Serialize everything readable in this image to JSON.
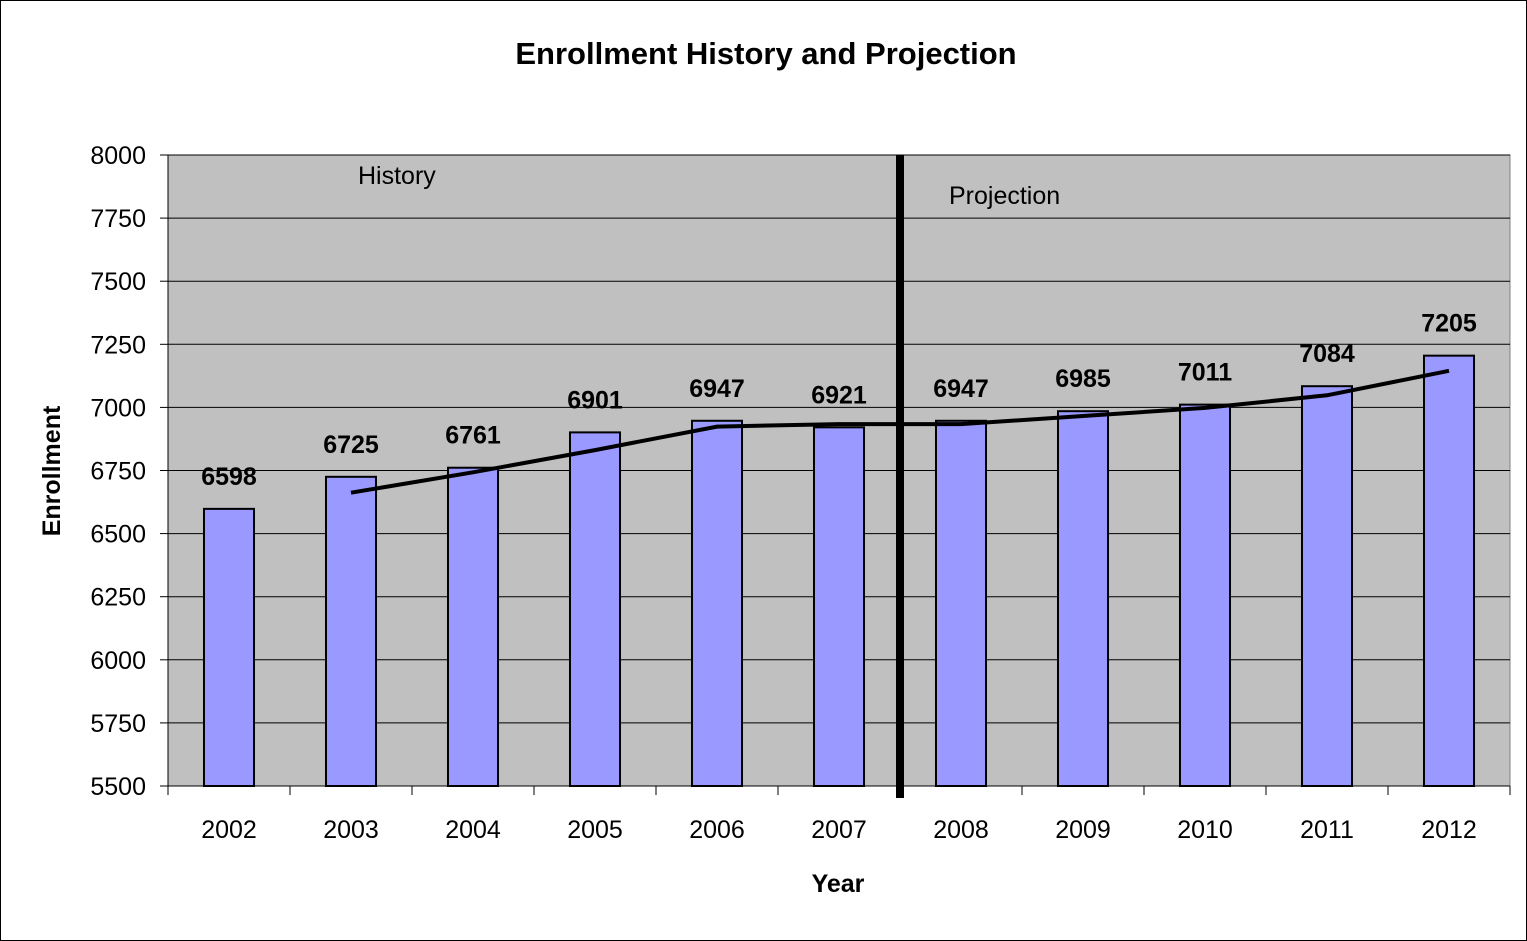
{
  "chart_data": {
    "type": "bar",
    "title": "Enrollment History and Projection",
    "xlabel": "Year",
    "ylabel": "Enrollment",
    "categories": [
      "2002",
      "2003",
      "2004",
      "2005",
      "2006",
      "2007",
      "2008",
      "2009",
      "2010",
      "2011",
      "2012"
    ],
    "values": [
      6598,
      6725,
      6761,
      6901,
      6947,
      6921,
      6947,
      6985,
      7011,
      7084,
      7205
    ],
    "trendline": {
      "categories": [
        "2003",
        "2004",
        "2005",
        "2006",
        "2007",
        "2008",
        "2009",
        "2010",
        "2011",
        "2012"
      ],
      "values": [
        6662,
        6743,
        6831,
        6924,
        6934,
        6934,
        6966,
        6998,
        7048,
        7145
      ]
    },
    "ylim": [
      5500,
      8000
    ],
    "yticks": [
      "5500",
      "5750",
      "6000",
      "6250",
      "6500",
      "6750",
      "7000",
      "7250",
      "7500",
      "7750",
      "8000"
    ],
    "grid": true,
    "legend": "none",
    "annotations": {
      "history_label": "History",
      "projection_label": "Projection",
      "divider_after_category": "2007"
    },
    "colors": {
      "bar_fill": "#9999FF",
      "plot_background": "#C0C0C0",
      "line": "#000000"
    }
  }
}
